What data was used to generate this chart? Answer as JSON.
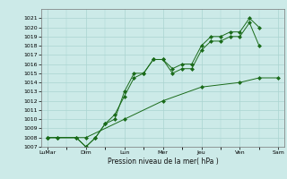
{
  "xlabel": "Pression niveau de la mer( hPa )",
  "ylim": [
    1007,
    1022
  ],
  "yticks": [
    1007,
    1008,
    1009,
    1010,
    1011,
    1012,
    1013,
    1014,
    1015,
    1016,
    1017,
    1018,
    1019,
    1020,
    1021
  ],
  "bg_color": "#cceae8",
  "grid_color": "#aad4d0",
  "line_color": "#1a6b1a",
  "series1_x": [
    0,
    0.5,
    1.5,
    2.0,
    2.5,
    3.0,
    3.5,
    4.0,
    4.5,
    5.0,
    5.5,
    6.0,
    6.5,
    7.0,
    7.5,
    8.0,
    8.5,
    9.0,
    9.5,
    10.0,
    10.5,
    11.0
  ],
  "series1_y": [
    1008,
    1008,
    1008,
    1007,
    1008,
    1009.5,
    1010,
    1013,
    1015,
    1015,
    1016.5,
    1016.5,
    1015.5,
    1016,
    1016,
    1018,
    1019,
    1019,
    1019.5,
    1019.5,
    1021,
    1020
  ],
  "series2_x": [
    0,
    0.5,
    1.5,
    2.0,
    2.5,
    3.0,
    3.5,
    4.0,
    4.5,
    5.0,
    5.5,
    6.0,
    6.5,
    7.0,
    7.5,
    8.0,
    8.5,
    9.0,
    9.5,
    10.0,
    10.5,
    11.0
  ],
  "series2_y": [
    1008,
    1008,
    1008,
    1007,
    1008,
    1009.5,
    1010.5,
    1012.5,
    1014.5,
    1015,
    1016.5,
    1016.5,
    1015,
    1015.5,
    1015.5,
    1017.5,
    1018.5,
    1018.5,
    1019,
    1019,
    1020.5,
    1018
  ],
  "series3_x": [
    0,
    2,
    4,
    6,
    8,
    10,
    11,
    12
  ],
  "series3_y": [
    1008,
    1008,
    1010,
    1012,
    1013.5,
    1014,
    1014.5,
    1014.5
  ],
  "xtick_positions": [
    0,
    2,
    4,
    6,
    8,
    10,
    12
  ],
  "xtick_labels": [
    "LuMar",
    "Dim",
    "Lun",
    "Mer",
    "Jeu",
    "Ven",
    "Sam"
  ]
}
